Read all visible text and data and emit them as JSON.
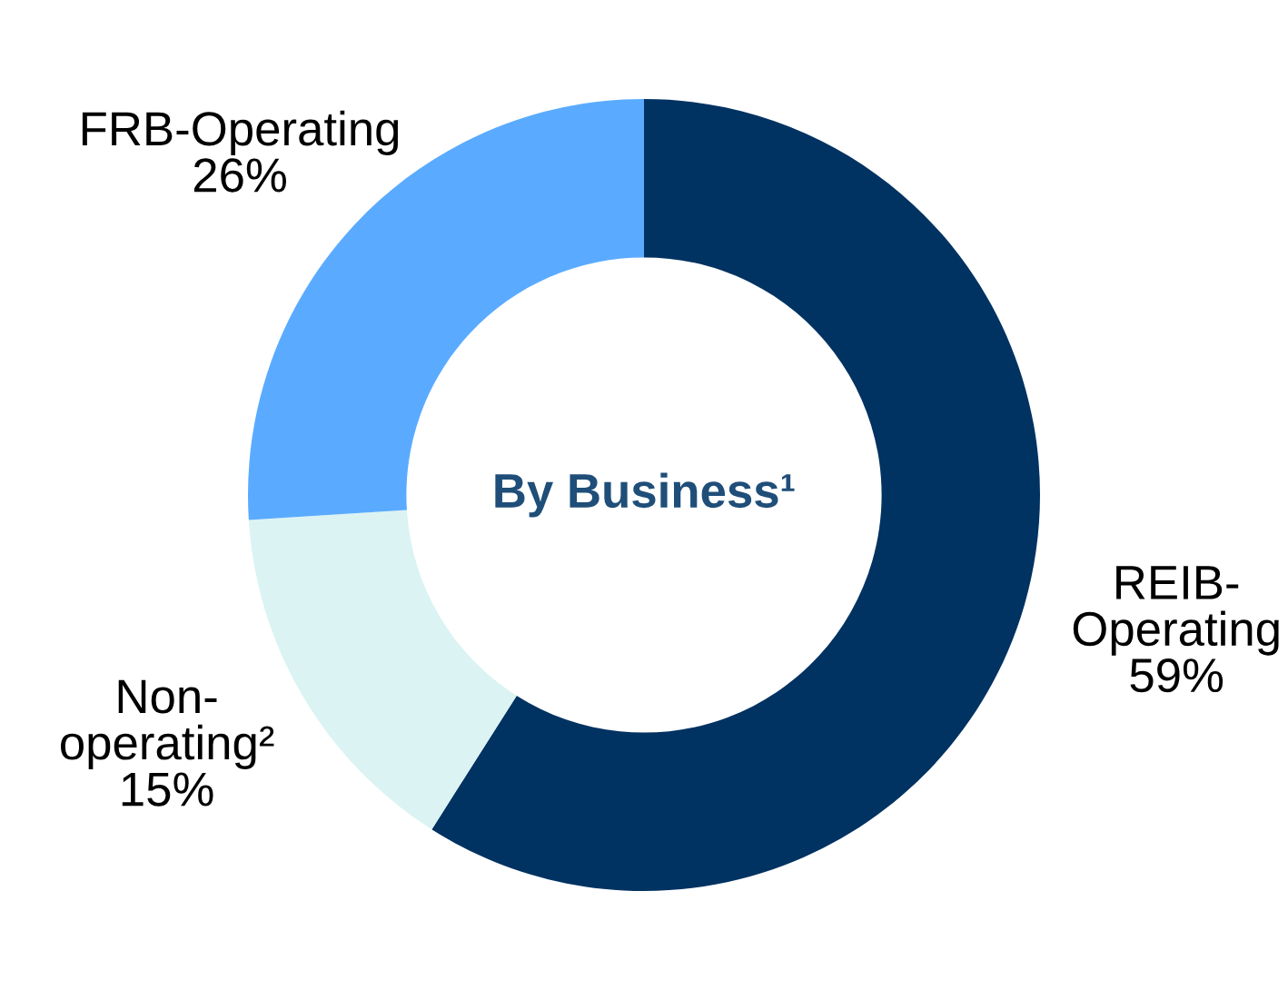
{
  "chart_data": {
    "type": "donut",
    "title": "By Business¹",
    "categories": [
      "REIB-\nOperating",
      "Non-\noperating²",
      "FRB-Operating"
    ],
    "values": [
      59,
      15,
      26
    ],
    "colors": [
      "#003262",
      "#dbf3f3",
      "#5aabff"
    ],
    "value_labels": [
      "59%",
      "15%",
      "26%"
    ],
    "legend": false
  }
}
